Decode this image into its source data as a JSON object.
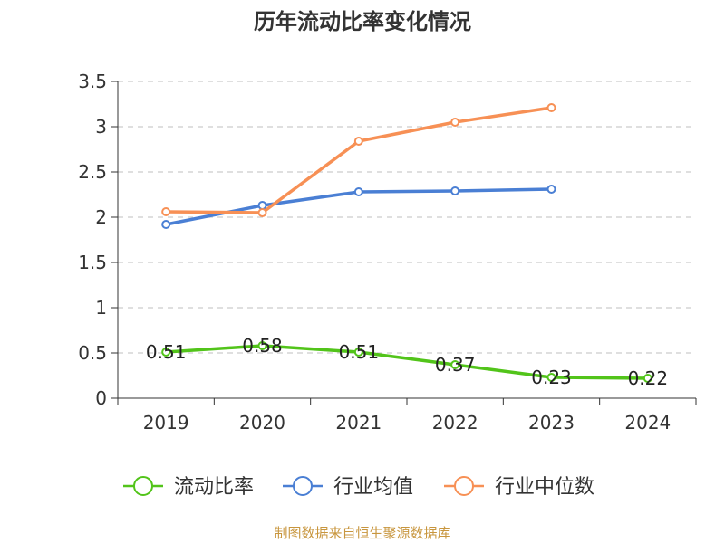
{
  "chart_data": {
    "type": "line",
    "title": "历年流动比率变化情况",
    "categories": [
      "2019",
      "2020",
      "2021",
      "2022",
      "2023",
      "2024"
    ],
    "ylim": [
      0,
      3.5
    ],
    "yticks": [
      "0",
      "0.5",
      "1",
      "1.5",
      "2",
      "2.5",
      "3",
      "3.5"
    ],
    "grid": true,
    "legend_position": "bottom",
    "series": [
      {
        "name": "流动比率",
        "color": "#52c41a",
        "values": [
          0.51,
          0.58,
          0.51,
          0.37,
          0.23,
          0.22
        ],
        "labels": [
          "0.51",
          "0.58",
          "0.51",
          "0.37",
          "0.23",
          "0.22"
        ]
      },
      {
        "name": "行业均值",
        "color": "#4a7fd4",
        "values": [
          1.92,
          2.13,
          2.28,
          2.29,
          2.31,
          null
        ]
      },
      {
        "name": "行业中位数",
        "color": "#f79055",
        "values": [
          2.06,
          2.05,
          2.84,
          3.05,
          3.21,
          null
        ]
      }
    ]
  },
  "footer": {
    "source": "制图数据来自恒生聚源数据库"
  }
}
